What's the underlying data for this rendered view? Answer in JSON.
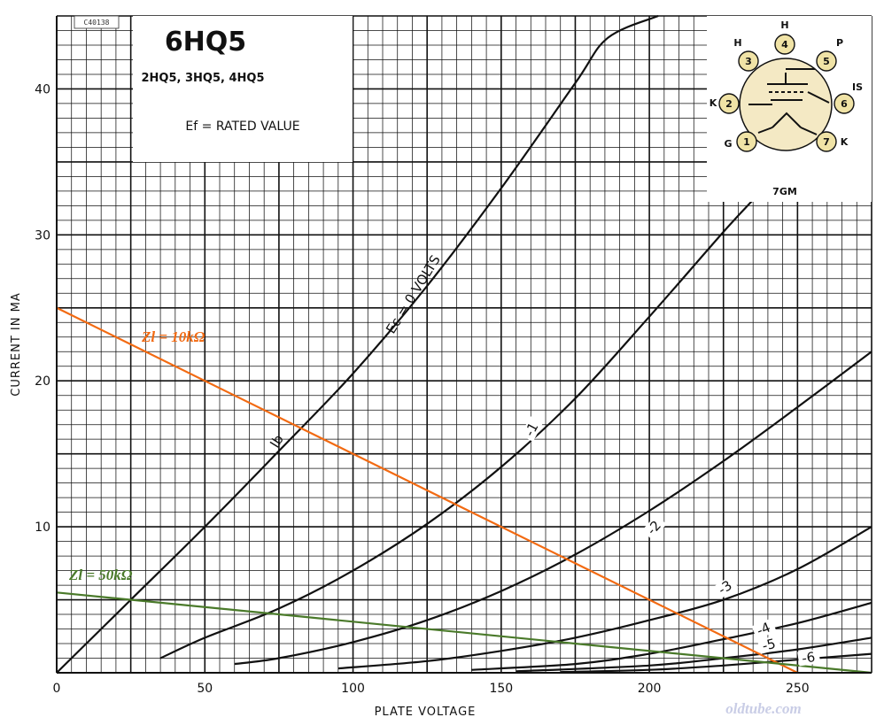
{
  "tube": {
    "title": "6HQ5",
    "subtitle": "2HQ5, 3HQ5, 4HQ5",
    "heater": "Ef = RATED VALUE",
    "code": "C40138"
  },
  "basing": {
    "code": "7GM",
    "pins": [
      {
        "num": "1",
        "label": "G"
      },
      {
        "num": "2",
        "label": "K"
      },
      {
        "num": "3",
        "label": "H"
      },
      {
        "num": "4",
        "label": "H"
      },
      {
        "num": "5",
        "label": "P"
      },
      {
        "num": "6",
        "label": "IS"
      },
      {
        "num": "7",
        "label": "K"
      }
    ],
    "colors": {
      "envelope": "#f4e9c4",
      "pin": "#f0e3a6"
    }
  },
  "watermark": "oldtube.com",
  "chart_data": {
    "type": "line",
    "xlabel": "PLATE VOLTAGE",
    "ylabel": "CURRENT IN MA",
    "xlim": [
      0,
      275
    ],
    "ylim": [
      0,
      45
    ],
    "xticks": [
      0,
      50,
      100,
      150,
      200,
      250
    ],
    "yticks": [
      10,
      20,
      30,
      40
    ],
    "grid": true,
    "curve_label_prefix": "Ib",
    "series": [
      {
        "name": "Ec = 0 VOLTS",
        "points": [
          [
            0,
            0
          ],
          [
            25,
            5
          ],
          [
            50,
            10
          ],
          [
            75,
            15.2
          ],
          [
            100,
            20.5
          ],
          [
            125,
            26.5
          ],
          [
            150,
            33.2
          ],
          [
            175,
            40.4
          ],
          [
            186,
            43.5
          ],
          [
            203,
            45
          ]
        ]
      },
      {
        "name": "-1",
        "points": [
          [
            35,
            1
          ],
          [
            50,
            2.4
          ],
          [
            75,
            4.4
          ],
          [
            100,
            7
          ],
          [
            125,
            10.2
          ],
          [
            150,
            14.1
          ],
          [
            175,
            18.8
          ],
          [
            200,
            24.4
          ],
          [
            225,
            30.2
          ],
          [
            235,
            32.4
          ]
        ]
      },
      {
        "name": "-2",
        "points": [
          [
            60,
            0.6
          ],
          [
            75,
            1
          ],
          [
            100,
            2.1
          ],
          [
            125,
            3.6
          ],
          [
            150,
            5.6
          ],
          [
            175,
            8.1
          ],
          [
            200,
            11.1
          ],
          [
            225,
            14.5
          ],
          [
            250,
            18.2
          ],
          [
            275,
            22
          ]
        ]
      },
      {
        "name": "-3",
        "points": [
          [
            95,
            0.3
          ],
          [
            125,
            0.8
          ],
          [
            150,
            1.5
          ],
          [
            175,
            2.4
          ],
          [
            200,
            3.6
          ],
          [
            225,
            5
          ],
          [
            250,
            7.1
          ],
          [
            275,
            10
          ]
        ]
      },
      {
        "name": "-4",
        "points": [
          [
            140,
            0.2
          ],
          [
            175,
            0.6
          ],
          [
            200,
            1.3
          ],
          [
            225,
            2.3
          ],
          [
            250,
            3.4
          ],
          [
            275,
            4.8
          ]
        ]
      },
      {
        "name": "-5",
        "points": [
          [
            155,
            0.1
          ],
          [
            200,
            0.5
          ],
          [
            225,
            1
          ],
          [
            250,
            1.6
          ],
          [
            275,
            2.4
          ]
        ]
      },
      {
        "name": "-6",
        "points": [
          [
            170,
            0.05
          ],
          [
            200,
            0.2
          ],
          [
            225,
            0.5
          ],
          [
            250,
            0.9
          ],
          [
            275,
            1.3
          ]
        ]
      }
    ],
    "load_lines": [
      {
        "name": "Zl = 10kΩ",
        "color": "#f26a12",
        "points": [
          [
            0,
            25
          ],
          [
            250,
            0
          ]
        ]
      },
      {
        "name": "Zl = 50kΩ",
        "color": "#4a7a2a",
        "points": [
          [
            0,
            5.5
          ],
          [
            275,
            0
          ]
        ]
      }
    ]
  }
}
